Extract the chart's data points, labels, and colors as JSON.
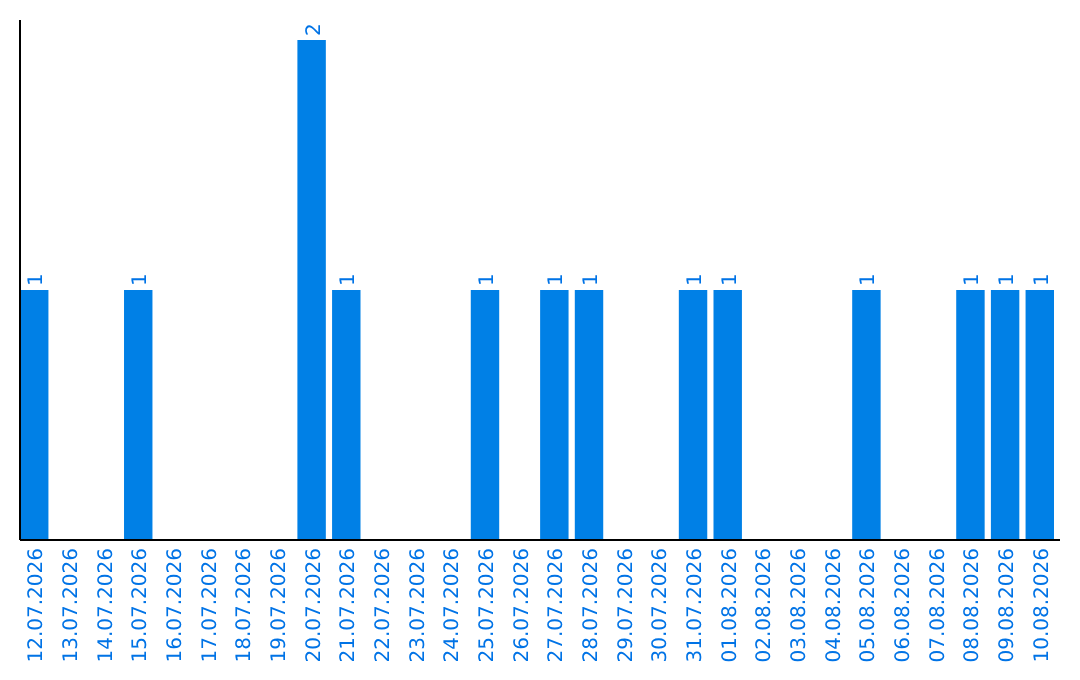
{
  "chart_data": {
    "type": "bar",
    "categories": [
      "12.07.2026",
      "13.07.2026",
      "14.07.2026",
      "15.07.2026",
      "16.07.2026",
      "17.07.2026",
      "18.07.2026",
      "19.07.2026",
      "20.07.2026",
      "21.07.2026",
      "22.07.2026",
      "23.07.2026",
      "24.07.2026",
      "25.07.2026",
      "26.07.2026",
      "27.07.2026",
      "28.07.2026",
      "29.07.2026",
      "30.07.2026",
      "31.07.2026",
      "01.08.2026",
      "02.08.2026",
      "03.08.2026",
      "04.08.2026",
      "05.08.2026",
      "06.08.2026",
      "07.08.2026",
      "08.08.2026",
      "09.08.2026",
      "10.08.2026"
    ],
    "values": [
      1,
      0,
      0,
      1,
      0,
      0,
      0,
      0,
      2,
      1,
      0,
      0,
      0,
      1,
      0,
      1,
      1,
      0,
      0,
      1,
      1,
      0,
      0,
      0,
      1,
      0,
      0,
      1,
      1,
      1
    ],
    "value_labels": [
      "1",
      null,
      null,
      "1",
      null,
      null,
      null,
      null,
      "2",
      "1",
      null,
      null,
      null,
      "1",
      null,
      "1",
      "1",
      null,
      null,
      "1",
      "1",
      null,
      null,
      null,
      "1",
      null,
      null,
      "1",
      "1",
      "1"
    ],
    "color": "#0080e6",
    "ylim": [
      0,
      2.08
    ],
    "tick_labels": "x"
  }
}
